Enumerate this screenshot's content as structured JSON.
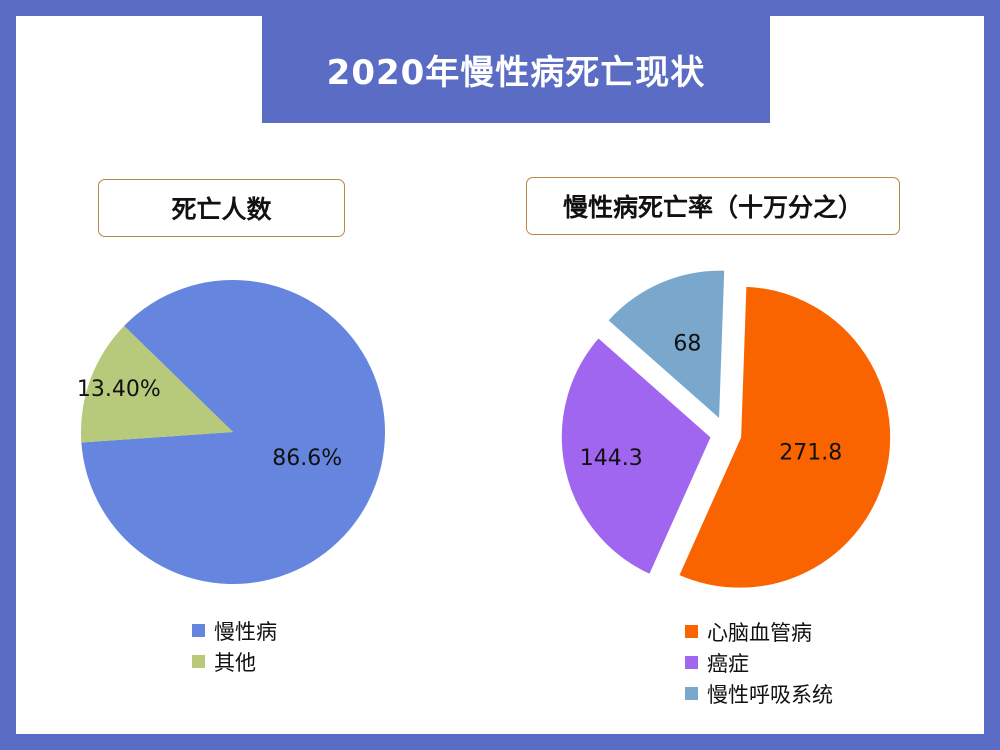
{
  "title": "2020年慢性病死亡现状",
  "colors": {
    "background": "#5a6cc4",
    "panel": "#ffffff",
    "subtitle_border": "#b8874a"
  },
  "chart_data": [
    {
      "type": "pie",
      "title": "死亡人数",
      "categories": [
        "慢性病",
        "其他"
      ],
      "values": [
        86.6,
        13.4
      ],
      "labels": [
        "86.6%",
        "13.40%"
      ],
      "colors": [
        "#6585df",
        "#b7c97a"
      ],
      "exploded": false,
      "legend": "bottom"
    },
    {
      "type": "pie",
      "title": "慢性病死亡率（十万分之）",
      "categories": [
        "心脑血管病",
        "癌症",
        "慢性呼吸系统"
      ],
      "values": [
        271.8,
        144.3,
        68
      ],
      "labels": [
        "271.8",
        "144.3",
        "68"
      ],
      "colors": [
        "#fa6400",
        "#a066ef",
        "#7aa8cd"
      ],
      "exploded": true,
      "legend": "bottom"
    }
  ]
}
